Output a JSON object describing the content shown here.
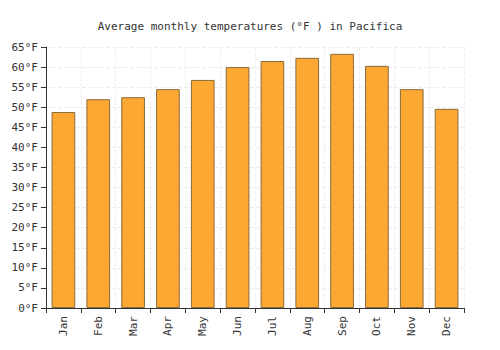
{
  "chart_data": {
    "type": "bar",
    "title": "Average monthly temperatures (°F ) in Pacifica",
    "categories": [
      "Jan",
      "Feb",
      "Mar",
      "Apr",
      "May",
      "Jun",
      "Jul",
      "Aug",
      "Sep",
      "Oct",
      "Nov",
      "Dec"
    ],
    "values": [
      48.8,
      52.0,
      52.5,
      54.5,
      56.8,
      60.0,
      61.5,
      62.3,
      63.3,
      60.3,
      54.5,
      49.6
    ],
    "color": "#fca832",
    "ylim": [
      0,
      65
    ],
    "yticks": [
      {
        "value": 0,
        "label": "0°F"
      },
      {
        "value": 5,
        "label": "5°F"
      },
      {
        "value": 10,
        "label": "10°F"
      },
      {
        "value": 15,
        "label": "15°F"
      },
      {
        "value": 20,
        "label": "20°F"
      },
      {
        "value": 25,
        "label": "25°F"
      },
      {
        "value": 30,
        "label": "30°F"
      },
      {
        "value": 35,
        "label": "35°F"
      },
      {
        "value": 40,
        "label": "40°F"
      },
      {
        "value": 45,
        "label": "45°F"
      },
      {
        "value": 50,
        "label": "50°F"
      },
      {
        "value": 55,
        "label": "55°F"
      },
      {
        "value": 60,
        "label": "60°F"
      },
      {
        "value": 65,
        "label": "65°F"
      }
    ],
    "grid": true
  }
}
